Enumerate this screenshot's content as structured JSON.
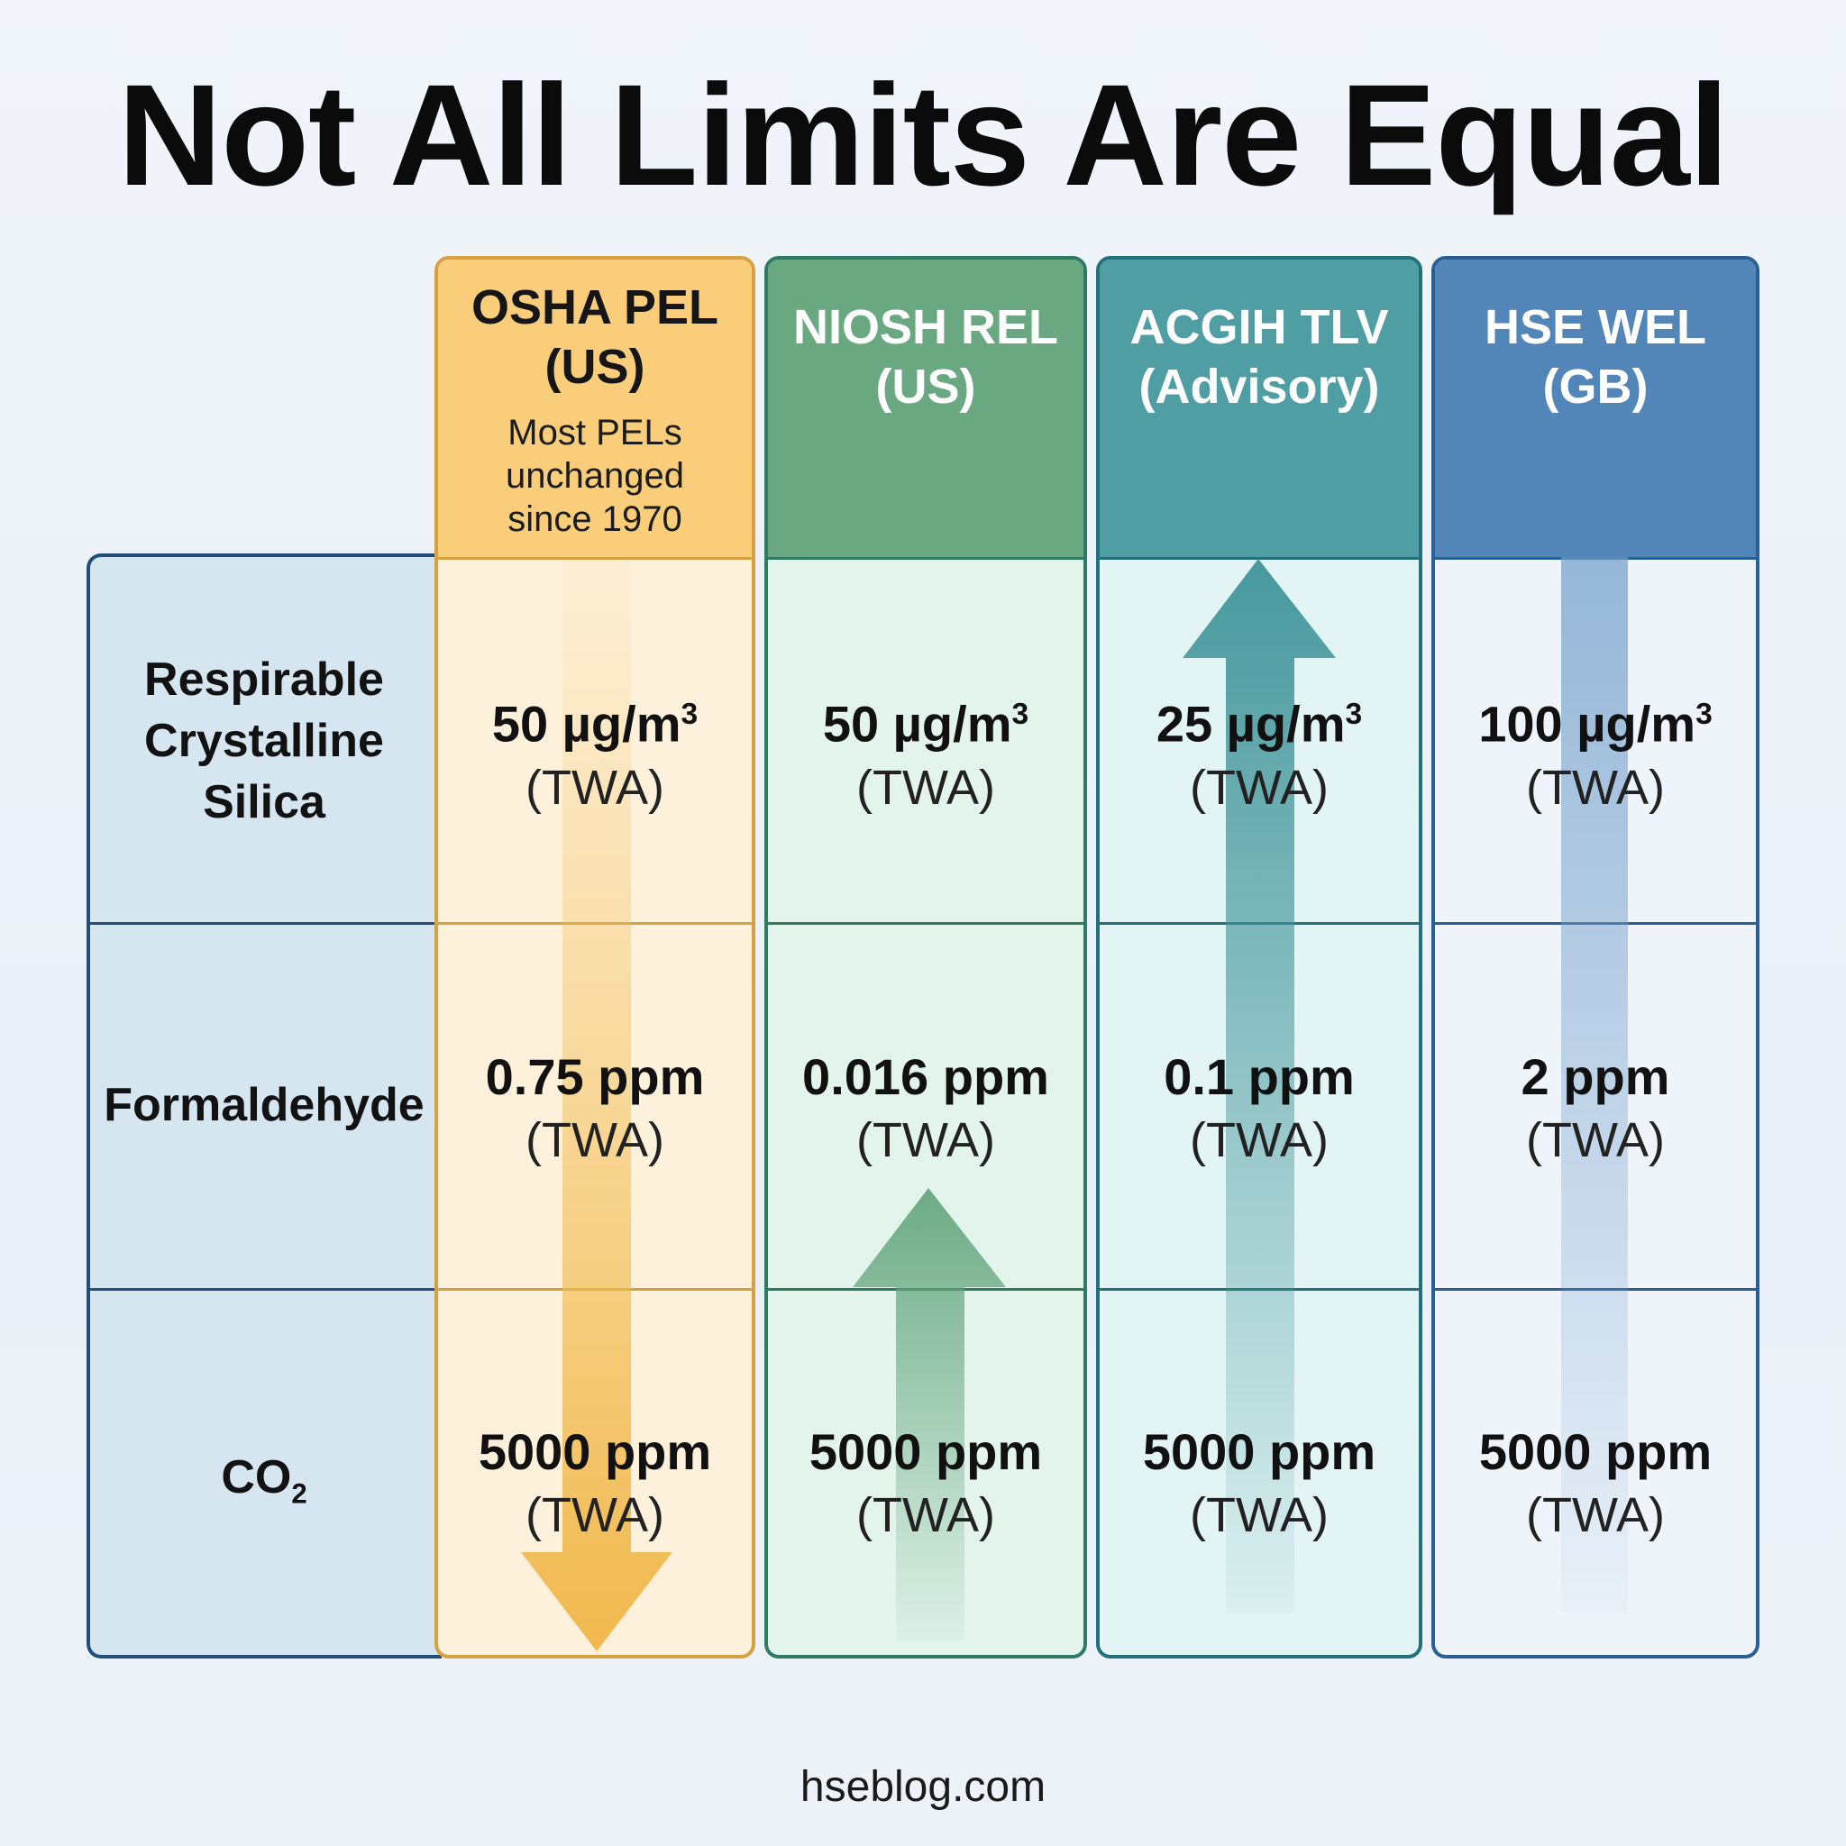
{
  "title": "Not All Limits Are Equal",
  "source": "hseblog.com",
  "columns": [
    {
      "title_line1": "OSHA PEL",
      "title_line2": "(US)",
      "note_line1": "Most PELs",
      "note_line2": "unchanged",
      "note_line3": "since 1970",
      "color": "#f2bb55",
      "trend": "down"
    },
    {
      "title_line1": "NIOSH REL",
      "title_line2": "(US)",
      "color": "#6aa882",
      "trend": "up"
    },
    {
      "title_line1": "ACGIH TLV",
      "title_line2": "(Advisory)",
      "color": "#4e9ea4",
      "trend": "up"
    },
    {
      "title_line1": "HSE WEL",
      "title_line2": "(GB)",
      "color": "#5286b8",
      "trend": "up"
    }
  ],
  "rows": [
    {
      "label_line1": "Respirable",
      "label_line2": "Crystalline",
      "label_line3": "Silica"
    },
    {
      "label_line1": "Formaldehyde"
    },
    {
      "label_line1": "CO",
      "label_sub": "2"
    }
  ],
  "cells": [
    [
      {
        "value": "50 µg/m",
        "sup": "3",
        "basis": "(TWA)"
      },
      {
        "value": "50 µg/m",
        "sup": "3",
        "basis": "(TWA)"
      },
      {
        "value": "25 µg/m",
        "sup": "3",
        "basis": "(TWA)"
      },
      {
        "value": "100 µg/m",
        "sup": "3",
        "basis": "(TWA)"
      }
    ],
    [
      {
        "value": "0.75 ppm",
        "basis": "(TWA)"
      },
      {
        "value": "0.016 ppm",
        "basis": "(TWA)"
      },
      {
        "value": "0.1 ppm",
        "basis": "(TWA)"
      },
      {
        "value": "2 ppm",
        "basis": "(TWA)"
      }
    ],
    [
      {
        "value": "5000 ppm",
        "basis": "(TWA)"
      },
      {
        "value": "5000 ppm",
        "basis": "(TWA)"
      },
      {
        "value": "5000 ppm",
        "basis": "(TWA)"
      },
      {
        "value": "5000 ppm",
        "basis": "(TWA)"
      }
    ]
  ]
}
